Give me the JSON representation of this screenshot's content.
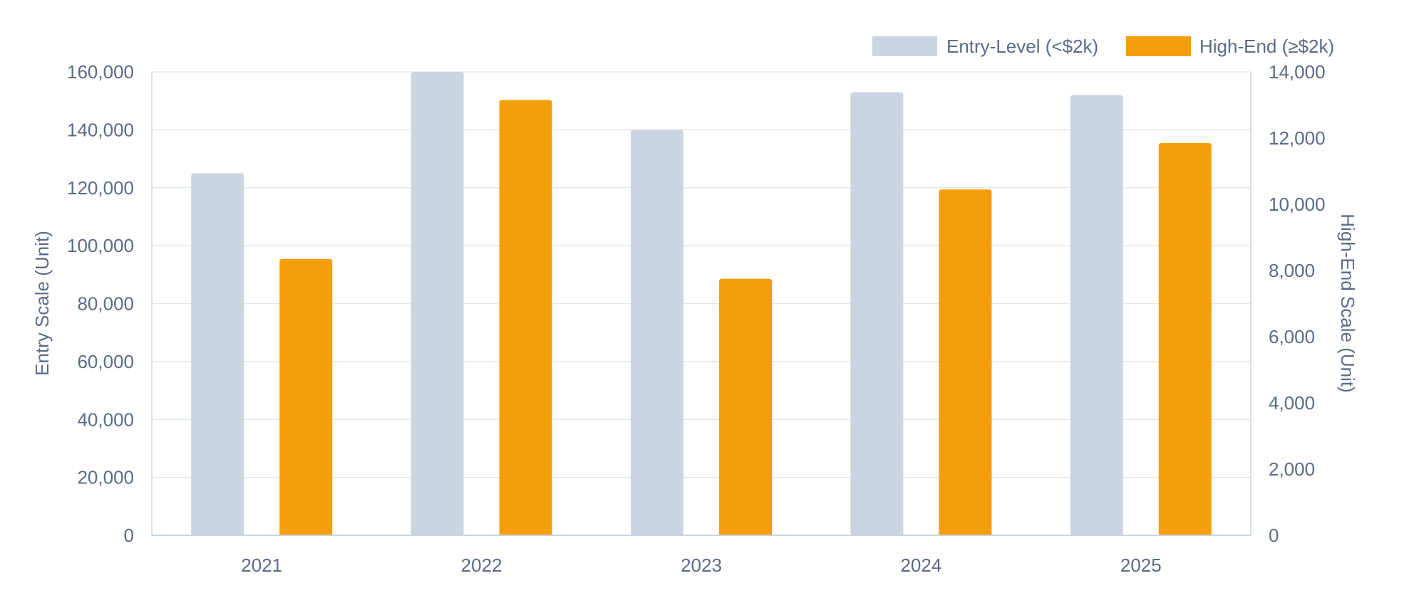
{
  "chart_data": {
    "type": "bar",
    "categories": [
      "2021",
      "2022",
      "2023",
      "2024",
      "2025"
    ],
    "series": [
      {
        "name": "Entry-Level (<$2k)",
        "axis": "left",
        "color": "#cbd5e1",
        "values": [
          125000,
          160000,
          140000,
          153000,
          152000
        ]
      },
      {
        "name": "High-End (≥$2k)",
        "axis": "right",
        "color": "#f59e0b",
        "values": [
          8350,
          13150,
          7750,
          10450,
          11850
        ]
      }
    ],
    "y_left": {
      "label": "Entry Scale (Unit)",
      "range": [
        0,
        160000
      ],
      "ticks": [
        "0",
        "20,000",
        "40,000",
        "60,000",
        "80,000",
        "100,000",
        "120,000",
        "140,000",
        "160,000"
      ]
    },
    "y_right": {
      "label": "High-End Scale (Unit)",
      "range": [
        0,
        14000
      ],
      "ticks": [
        "0",
        "2,000",
        "4,000",
        "6,000",
        "8,000",
        "10,000",
        "12,000",
        "14,000"
      ]
    },
    "grid": true,
    "legend_position": "top-right"
  }
}
